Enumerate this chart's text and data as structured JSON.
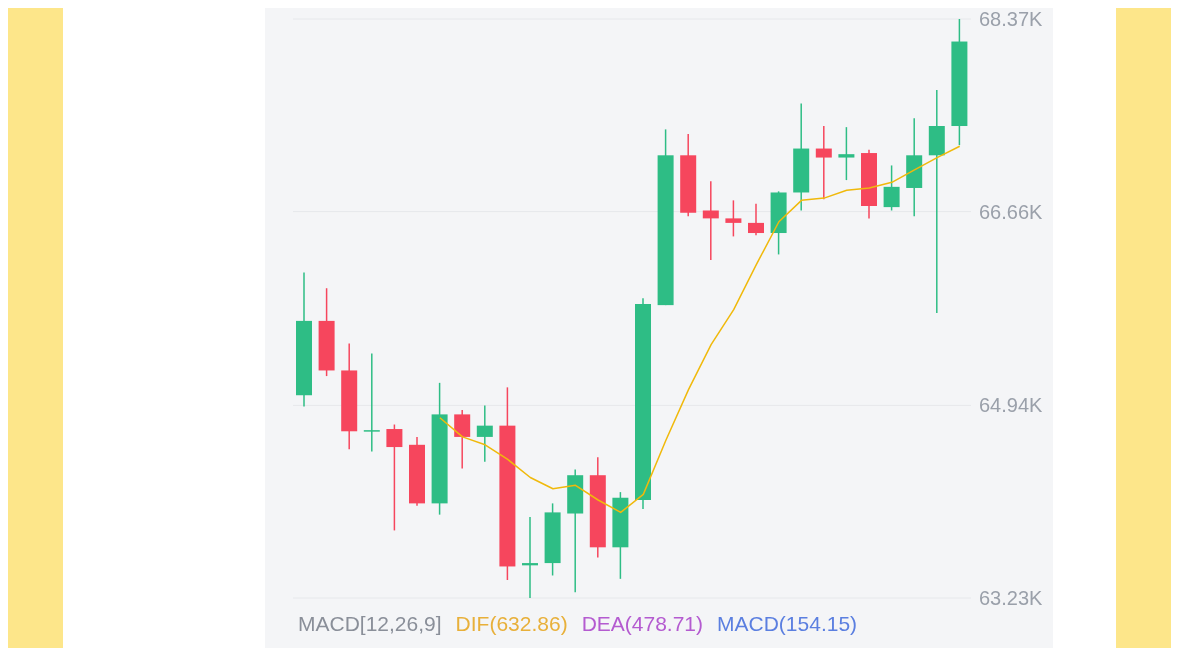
{
  "chart_data": {
    "type": "candlestick",
    "categories": [
      null,
      null,
      null,
      null,
      null,
      null,
      null,
      null,
      null,
      null,
      null,
      null,
      null,
      null,
      null,
      null,
      null,
      null,
      null,
      null,
      null,
      null,
      null,
      null,
      null,
      null,
      null,
      null,
      null,
      null
    ],
    "ohlc": [
      [
        65030,
        66120,
        64930,
        65690
      ],
      [
        65690,
        65980,
        65200,
        65250
      ],
      [
        65250,
        65490,
        64550,
        64710
      ],
      [
        64710,
        65400,
        64530,
        64720
      ],
      [
        64730,
        64770,
        63830,
        64570
      ],
      [
        64590,
        64660,
        64050,
        64070
      ],
      [
        64070,
        65140,
        63970,
        64860
      ],
      [
        64860,
        64900,
        64380,
        64660
      ],
      [
        64660,
        64940,
        64440,
        64760
      ],
      [
        64760,
        65100,
        63390,
        63510
      ],
      [
        63520,
        63950,
        63230,
        63540
      ],
      [
        63540,
        64070,
        63430,
        63990
      ],
      [
        63980,
        64370,
        63280,
        64320
      ],
      [
        64320,
        64480,
        63590,
        63680
      ],
      [
        63680,
        64170,
        63400,
        64120
      ],
      [
        64100,
        65890,
        64020,
        65840
      ],
      [
        65830,
        67390,
        65830,
        67160
      ],
      [
        67160,
        67350,
        66620,
        66650
      ],
      [
        66670,
        66930,
        66230,
        66600
      ],
      [
        66600,
        66760,
        66440,
        66560
      ],
      [
        66560,
        66730,
        66450,
        66470
      ],
      [
        66470,
        66840,
        66280,
        66830
      ],
      [
        66830,
        67620,
        66670,
        67220
      ],
      [
        67220,
        67420,
        66770,
        67140
      ],
      [
        67140,
        67410,
        66940,
        67170
      ],
      [
        67180,
        67210,
        66600,
        66710
      ],
      [
        66700,
        67070,
        66670,
        66880
      ],
      [
        66870,
        67490,
        66620,
        67160
      ],
      [
        67160,
        67740,
        65760,
        67420
      ],
      [
        67420,
        68370,
        67250,
        68170
      ]
    ],
    "colors": [
      "#2ebd85",
      "#f6465d",
      "#f6465d",
      "#2ebd85",
      "#f6465d",
      "#f6465d",
      "#2ebd85",
      "#f6465d",
      "#2ebd85",
      "#f6465d",
      "#2ebd85",
      "#2ebd85",
      "#2ebd85",
      "#f6465d",
      "#2ebd85",
      "#2ebd85",
      "#2ebd85",
      "#f6465d",
      "#f6465d",
      "#f6465d",
      "#f6465d",
      "#2ebd85",
      "#2ebd85",
      "#f6465d",
      "#2ebd85",
      "#f6465d",
      "#2ebd85",
      "#2ebd85",
      "#2ebd85",
      "#2ebd85"
    ],
    "series": [
      {
        "type": "line",
        "color": "#f0b90b",
        "values": [
          null,
          null,
          null,
          null,
          null,
          null,
          64830,
          64660,
          64590,
          64460,
          64300,
          64200,
          64230,
          64100,
          63990,
          64150,
          64630,
          65080,
          65480,
          65790,
          66190,
          66570,
          66760,
          66780,
          66850,
          66870,
          66920,
          67030,
          67140,
          67240
        ]
      }
    ],
    "ylim": [
      63230,
      68370
    ],
    "yticks": [
      {
        "value": 63230,
        "label": "63.23K"
      },
      {
        "value": 64940,
        "label": "64.94K"
      },
      {
        "value": 66660,
        "label": "66.66K"
      },
      {
        "value": 68370,
        "label": "68.37K"
      }
    ],
    "grid": "y",
    "annotations": [
      "MACD[12,26,9]",
      "DIF(632.86)",
      "DEA(478.71)",
      "MACD(154.15)"
    ]
  }
}
